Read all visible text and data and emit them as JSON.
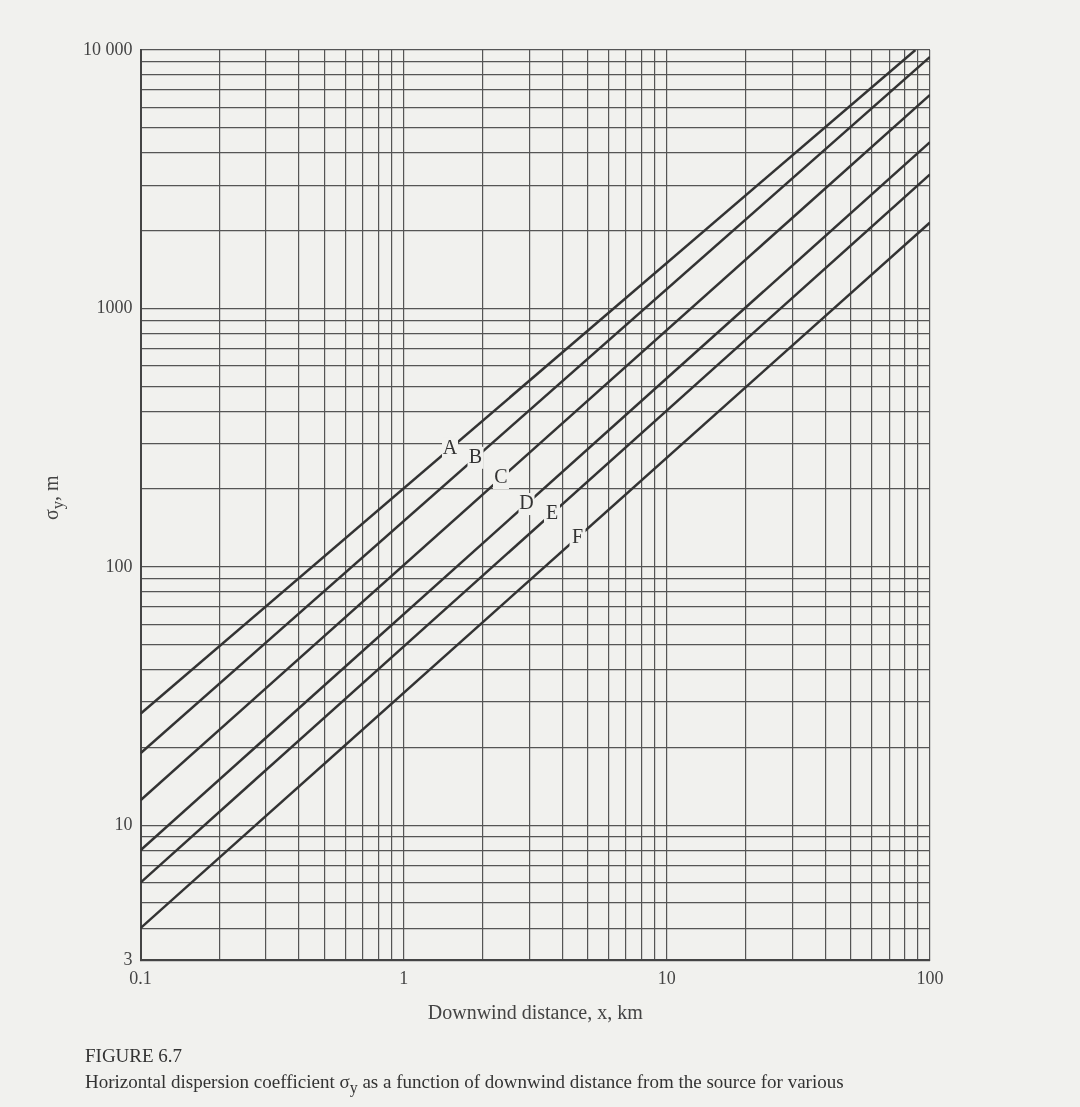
{
  "chart_data": {
    "type": "line",
    "xlabel": "Downwind distance, x, km",
    "ylabel": "σ$_{y}$, m",
    "annotations": [
      "FIGURE 6.7",
      "Horizontal dispersion coefficient σ$_{y}$ as a function of downwind distance from the source for various"
    ],
    "log": "xy",
    "grid": true,
    "legend": false,
    "marker": "none",
    "line_style": "solid",
    "xlim": [
      0.1,
      100
    ],
    "ylim": [
      3,
      10000
    ],
    "xticks": [
      0.1,
      {
        "value": 0.2,
        "label": null
      },
      {
        "value": 0.3,
        "label": null
      },
      {
        "value": 0.4,
        "label": null
      },
      {
        "value": 0.5,
        "label": null
      },
      {
        "value": 0.6,
        "label": null
      },
      {
        "value": 0.7,
        "label": null
      },
      {
        "value": 0.8,
        "label": null
      },
      {
        "value": 0.9,
        "label": null
      },
      1,
      {
        "value": 2,
        "label": null
      },
      {
        "value": 3,
        "label": null
      },
      {
        "value": 4,
        "label": null
      },
      {
        "value": 5,
        "label": null
      },
      {
        "value": 6,
        "label": null
      },
      {
        "value": 7,
        "label": null
      },
      {
        "value": 8,
        "label": null
      },
      {
        "value": 9,
        "label": null
      },
      10,
      {
        "value": 20,
        "label": null
      },
      {
        "value": 30,
        "label": null
      },
      {
        "value": 40,
        "label": null
      },
      {
        "value": 50,
        "label": null
      },
      {
        "value": 60,
        "label": null
      },
      {
        "value": 70,
        "label": null
      },
      {
        "value": 80,
        "label": null
      },
      {
        "value": 90,
        "label": null
      },
      100
    ],
    "yticks": [
      3,
      {
        "value": 4,
        "label": null
      },
      {
        "value": 5,
        "label": null
      },
      {
        "value": 6,
        "label": null
      },
      {
        "value": 7,
        "label": null
      },
      {
        "value": 8,
        "label": null
      },
      {
        "value": 9,
        "label": null
      },
      10,
      {
        "value": 20,
        "label": null
      },
      {
        "value": 30,
        "label": null
      },
      {
        "value": 40,
        "label": null
      },
      {
        "value": 50,
        "label": null
      },
      {
        "value": 60,
        "label": null
      },
      {
        "value": 70,
        "label": null
      },
      {
        "value": 80,
        "label": null
      },
      {
        "value": 90,
        "label": null
      },
      100,
      {
        "value": 200,
        "label": null
      },
      {
        "value": 300,
        "label": null
      },
      {
        "value": 400,
        "label": null
      },
      {
        "value": 500,
        "label": null
      },
      {
        "value": 600,
        "label": null
      },
      {
        "value": 700,
        "label": null
      },
      {
        "value": 800,
        "label": null
      },
      {
        "value": 900,
        "label": null
      },
      1000,
      {
        "value": 2000,
        "label": null
      },
      {
        "value": 3000,
        "label": null
      },
      {
        "value": 4000,
        "label": null
      },
      {
        "value": 5000,
        "label": null
      },
      {
        "value": 6000,
        "label": null
      },
      {
        "value": 7000,
        "label": null
      },
      {
        "value": 8000,
        "label": null
      },
      {
        "value": 9000,
        "label": null
      },
      {
        "value": 10000,
        "label": "10 000"
      }
    ],
    "series": [
      {
        "name": "A",
        "color": "#333333",
        "x": [
          0.1,
          88
        ],
        "values": [
          27,
          10000
        ]
      },
      {
        "name": "B",
        "color": "#333333",
        "x": [
          0.1,
          100
        ],
        "values": [
          19,
          9400
        ]
      },
      {
        "name": "C",
        "color": "#333333",
        "x": [
          0.1,
          100
        ],
        "values": [
          12.5,
          6700
        ]
      },
      {
        "name": "D",
        "color": "#333333",
        "x": [
          0.1,
          100
        ],
        "values": [
          8,
          4400
        ]
      },
      {
        "name": "E",
        "color": "#333333",
        "x": [
          0.1,
          100
        ],
        "values": [
          6,
          3300
        ]
      },
      {
        "name": "F",
        "color": "#333333",
        "x": [
          0.1,
          100
        ],
        "values": [
          4,
          2150
        ]
      }
    ]
  }
}
